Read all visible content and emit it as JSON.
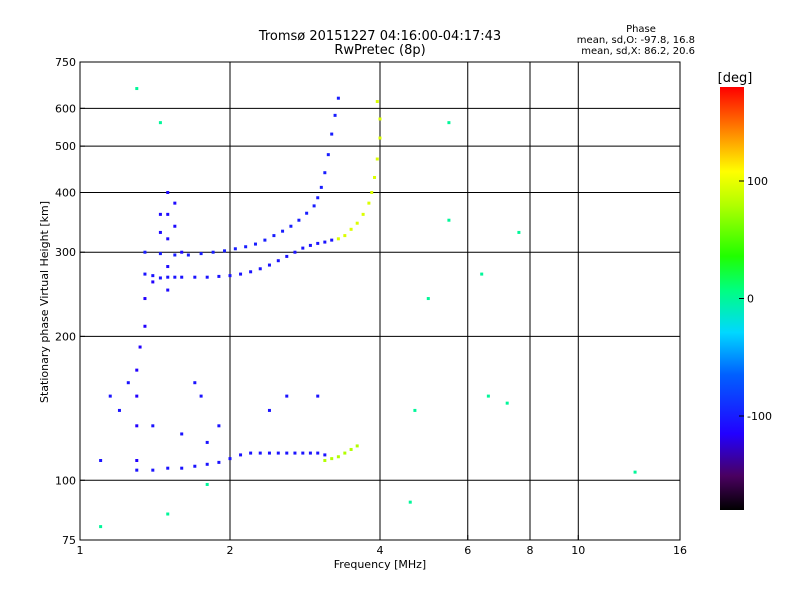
{
  "chart_data": {
    "type": "scatter",
    "title": "Tromsø 20151227 04:16:00-04:17:43",
    "subtitle": "RwPretec (8p)",
    "xlabel": "Frequency [MHz]",
    "ylabel": "Stationary phase Virtual Height [km]",
    "x_scale": "log",
    "y_scale": "log",
    "xlim": [
      1,
      16
    ],
    "ylim": [
      75,
      750
    ],
    "x_ticks": [
      1,
      2,
      4,
      6,
      8,
      10,
      16
    ],
    "y_ticks": [
      75,
      100,
      200,
      300,
      400,
      500,
      600,
      750
    ],
    "x_gridlines": [
      2,
      4,
      6,
      8,
      10
    ],
    "y_gridlines": [
      100,
      200,
      300,
      400,
      500,
      600
    ],
    "grid": true,
    "stats": {
      "title": "Phase",
      "line_o": "mean, sd,O: -97.8, 16.8",
      "line_x": "mean, sd,X:  86.2, 20.6"
    },
    "colorbar": {
      "unit": "[deg]",
      "range": [
        -180,
        180
      ],
      "ticks": [
        {
          "value": 100,
          "label": "100"
        },
        {
          "value": 0,
          "label": "0"
        },
        {
          "value": -100,
          "label": "-100"
        }
      ],
      "colormap": "rainbow-black-to-red"
    },
    "series": [
      {
        "trace": "F-region O-mode lower branch (blue)",
        "phase_deg": -105,
        "points": [
          [
            1.35,
            270
          ],
          [
            1.4,
            268
          ],
          [
            1.45,
            265
          ],
          [
            1.5,
            266
          ],
          [
            1.55,
            266
          ],
          [
            1.6,
            266
          ],
          [
            1.7,
            266
          ],
          [
            1.8,
            266
          ],
          [
            1.9,
            267
          ],
          [
            2.0,
            268
          ],
          [
            2.1,
            270
          ],
          [
            2.2,
            273
          ],
          [
            2.3,
            277
          ],
          [
            2.4,
            282
          ],
          [
            2.5,
            288
          ],
          [
            2.6,
            294
          ],
          [
            2.7,
            300
          ],
          [
            2.8,
            306
          ],
          [
            2.9,
            310
          ],
          [
            3.0,
            313
          ],
          [
            3.1,
            315
          ],
          [
            3.2,
            318
          ]
        ]
      },
      {
        "trace": "F-region O-mode upper branch (blue)",
        "phase_deg": -100,
        "points": [
          [
            1.35,
            300
          ],
          [
            1.45,
            298
          ],
          [
            1.55,
            296
          ],
          [
            1.65,
            296
          ],
          [
            1.75,
            298
          ],
          [
            1.85,
            300
          ],
          [
            1.95,
            302
          ],
          [
            2.05,
            305
          ],
          [
            2.15,
            308
          ],
          [
            2.25,
            312
          ],
          [
            2.35,
            318
          ],
          [
            2.45,
            325
          ],
          [
            2.55,
            332
          ],
          [
            2.65,
            340
          ],
          [
            2.75,
            350
          ],
          [
            2.85,
            362
          ],
          [
            2.95,
            375
          ],
          [
            3.0,
            390
          ],
          [
            3.05,
            410
          ],
          [
            3.1,
            440
          ],
          [
            3.15,
            480
          ],
          [
            3.2,
            530
          ],
          [
            3.25,
            580
          ],
          [
            3.3,
            630
          ]
        ]
      },
      {
        "trace": "F-region X-mode (yellow/orange)",
        "phase_deg": 95,
        "points": [
          [
            3.3,
            320
          ],
          [
            3.4,
            325
          ],
          [
            3.5,
            335
          ],
          [
            3.6,
            345
          ],
          [
            3.7,
            360
          ],
          [
            3.8,
            380
          ],
          [
            3.85,
            400
          ],
          [
            3.9,
            430
          ],
          [
            3.95,
            470
          ],
          [
            4.0,
            520
          ],
          [
            4.0,
            570
          ],
          [
            3.95,
            620
          ]
        ]
      },
      {
        "trace": "Spread-F vertical column near 1.5 MHz (blue)",
        "phase_deg": -110,
        "points": [
          [
            1.5,
            250
          ],
          [
            1.5,
            280
          ],
          [
            1.5,
            320
          ],
          [
            1.5,
            360
          ],
          [
            1.5,
            400
          ],
          [
            1.55,
            380
          ],
          [
            1.55,
            340
          ],
          [
            1.6,
            300
          ],
          [
            1.45,
            360
          ],
          [
            1.45,
            330
          ]
        ]
      },
      {
        "trace": "Low spread trace near 1.3 MHz (blue)",
        "phase_deg": -115,
        "points": [
          [
            1.3,
            110
          ],
          [
            1.3,
            130
          ],
          [
            1.3,
            150
          ],
          [
            1.3,
            170
          ],
          [
            1.32,
            190
          ],
          [
            1.35,
            210
          ],
          [
            1.35,
            240
          ],
          [
            1.4,
            260
          ]
        ]
      },
      {
        "trace": "E-region trace (blue)",
        "phase_deg": -105,
        "points": [
          [
            1.3,
            105
          ],
          [
            1.4,
            105
          ],
          [
            1.5,
            106
          ],
          [
            1.6,
            106
          ],
          [
            1.7,
            107
          ],
          [
            1.8,
            108
          ],
          [
            1.9,
            109
          ],
          [
            2.0,
            111
          ],
          [
            2.1,
            113
          ],
          [
            2.2,
            114
          ],
          [
            2.3,
            114
          ],
          [
            2.4,
            114
          ],
          [
            2.5,
            114
          ],
          [
            2.6,
            114
          ],
          [
            2.7,
            114
          ],
          [
            2.8,
            114
          ],
          [
            2.9,
            114
          ],
          [
            3.0,
            114
          ],
          [
            3.1,
            113
          ]
        ]
      },
      {
        "trace": "E-region X-mode (yellow/green)",
        "phase_deg": 80,
        "points": [
          [
            3.1,
            110
          ],
          [
            3.2,
            111
          ],
          [
            3.3,
            112
          ],
          [
            3.4,
            114
          ],
          [
            3.5,
            116
          ],
          [
            3.6,
            118
          ]
        ]
      },
      {
        "trace": "Mid-height scatter 1.1–1.9 MHz (blue)",
        "phase_deg": -105,
        "points": [
          [
            1.1,
            110
          ],
          [
            1.15,
            150
          ],
          [
            1.2,
            140
          ],
          [
            1.25,
            160
          ],
          [
            1.4,
            130
          ],
          [
            1.6,
            125
          ],
          [
            1.7,
            160
          ],
          [
            1.75,
            150
          ],
          [
            1.8,
            120
          ],
          [
            1.9,
            130
          ],
          [
            2.4,
            140
          ],
          [
            2.6,
            150
          ],
          [
            3.0,
            150
          ]
        ]
      },
      {
        "trace": "Isolated echoes (mixed phase)",
        "phase_deg": 0,
        "points": [
          [
            1.3,
            660
          ],
          [
            1.45,
            560
          ],
          [
            4.6,
            90
          ],
          [
            4.7,
            140
          ],
          [
            5.0,
            240
          ],
          [
            5.5,
            560
          ],
          [
            5.5,
            350
          ],
          [
            6.4,
            270
          ],
          [
            6.6,
            150
          ],
          [
            7.2,
            145
          ],
          [
            7.6,
            330
          ],
          [
            13.0,
            104
          ],
          [
            1.1,
            80
          ],
          [
            1.5,
            85
          ],
          [
            1.8,
            98
          ]
        ]
      }
    ]
  }
}
